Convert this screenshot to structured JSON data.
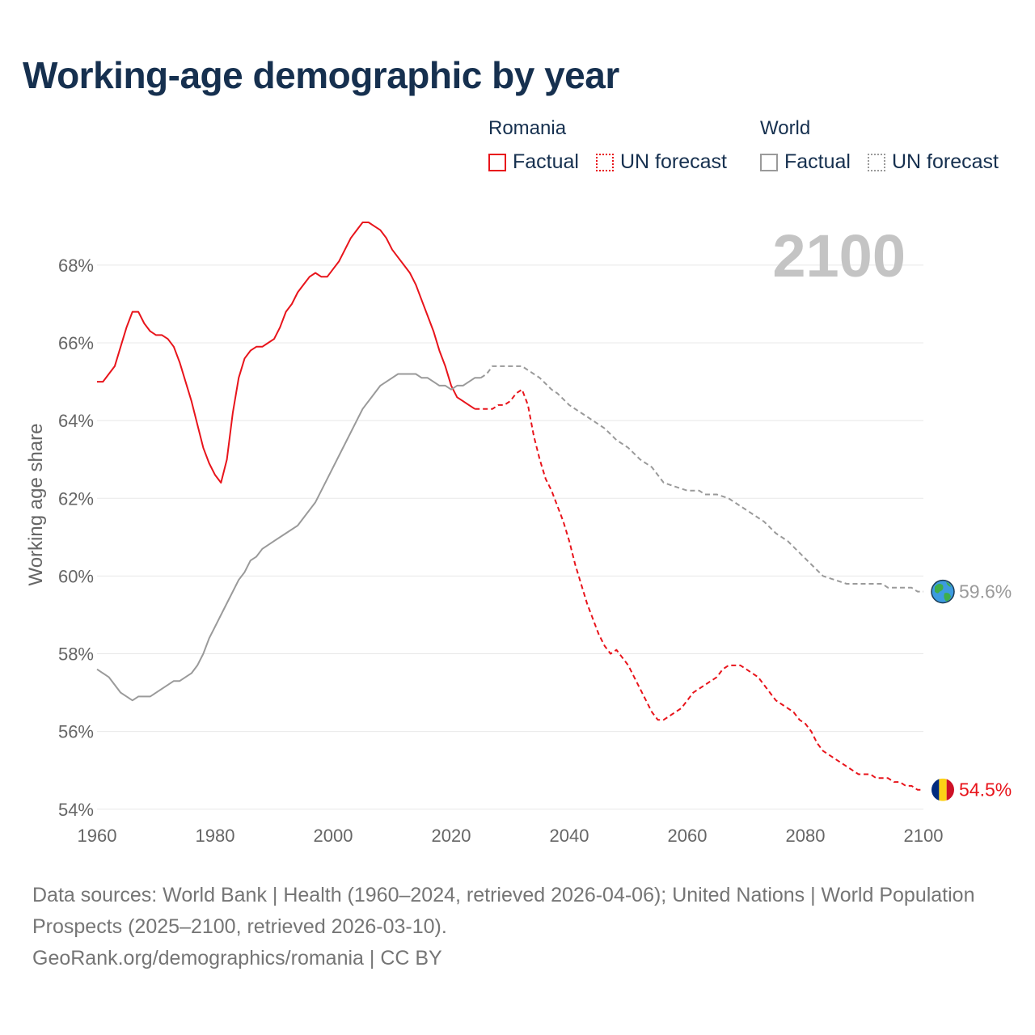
{
  "title": "Working-age demographic by year",
  "legend": {
    "romania_title": "Romania",
    "world_title": "World",
    "romania_factual": "Factual",
    "romania_forecast": "UN forecast",
    "world_factual": "Factual",
    "world_forecast": "UN forecast"
  },
  "colors": {
    "romania": "#e8141b",
    "world": "#9a9a9a",
    "title": "#16304f"
  },
  "chart_data": {
    "type": "line",
    "title": "Working-age demographic by year",
    "xlabel": "",
    "ylabel": "Working age share",
    "xlim": [
      1960,
      2100
    ],
    "ylim": [
      53.6,
      69.6
    ],
    "x_ticks": [
      1960,
      1980,
      2000,
      2020,
      2040,
      2060,
      2080,
      2100
    ],
    "y_ticks": [
      54,
      56,
      58,
      60,
      62,
      64,
      66,
      68
    ],
    "y_tick_suffix": "%",
    "year_label": "2100",
    "series": [
      {
        "name": "Romania",
        "segment": "Factual",
        "style": "solid",
        "color": "#e8141b",
        "points": [
          [
            1960,
            65.0
          ],
          [
            1961,
            65.0
          ],
          [
            1963,
            65.4
          ],
          [
            1964,
            65.9
          ],
          [
            1965,
            66.4
          ],
          [
            1966,
            66.8
          ],
          [
            1967,
            66.8
          ],
          [
            1968,
            66.5
          ],
          [
            1969,
            66.3
          ],
          [
            1970,
            66.2
          ],
          [
            1971,
            66.2
          ],
          [
            1972,
            66.1
          ],
          [
            1973,
            65.9
          ],
          [
            1974,
            65.5
          ],
          [
            1975,
            65.0
          ],
          [
            1976,
            64.5
          ],
          [
            1977,
            63.9
          ],
          [
            1978,
            63.3
          ],
          [
            1979,
            62.9
          ],
          [
            1980,
            62.6
          ],
          [
            1981,
            62.4
          ],
          [
            1982,
            63.0
          ],
          [
            1983,
            64.2
          ],
          [
            1984,
            65.1
          ],
          [
            1985,
            65.6
          ],
          [
            1986,
            65.8
          ],
          [
            1987,
            65.9
          ],
          [
            1988,
            65.9
          ],
          [
            1989,
            66.0
          ],
          [
            1990,
            66.1
          ],
          [
            1991,
            66.4
          ],
          [
            1992,
            66.8
          ],
          [
            1993,
            67.0
          ],
          [
            1994,
            67.3
          ],
          [
            1995,
            67.5
          ],
          [
            1996,
            67.7
          ],
          [
            1997,
            67.8
          ],
          [
            1998,
            67.7
          ],
          [
            1999,
            67.7
          ],
          [
            2000,
            67.9
          ],
          [
            2001,
            68.1
          ],
          [
            2002,
            68.4
          ],
          [
            2003,
            68.7
          ],
          [
            2004,
            68.9
          ],
          [
            2005,
            69.1
          ],
          [
            2006,
            69.1
          ],
          [
            2007,
            69.0
          ],
          [
            2008,
            68.9
          ],
          [
            2009,
            68.7
          ],
          [
            2010,
            68.4
          ],
          [
            2011,
            68.2
          ],
          [
            2012,
            68.0
          ],
          [
            2013,
            67.8
          ],
          [
            2014,
            67.5
          ],
          [
            2015,
            67.1
          ],
          [
            2016,
            66.7
          ],
          [
            2017,
            66.3
          ],
          [
            2018,
            65.8
          ],
          [
            2019,
            65.4
          ],
          [
            2020,
            64.9
          ],
          [
            2021,
            64.6
          ],
          [
            2022,
            64.5
          ],
          [
            2023,
            64.4
          ],
          [
            2024,
            64.3
          ]
        ]
      },
      {
        "name": "Romania",
        "segment": "UN forecast",
        "style": "dashed",
        "color": "#e8141b",
        "points": [
          [
            2024,
            64.3
          ],
          [
            2025,
            64.3
          ],
          [
            2026,
            64.3
          ],
          [
            2027,
            64.3
          ],
          [
            2028,
            64.4
          ],
          [
            2029,
            64.4
          ],
          [
            2030,
            64.5
          ],
          [
            2031,
            64.7
          ],
          [
            2032,
            64.8
          ],
          [
            2033,
            64.4
          ],
          [
            2034,
            63.6
          ],
          [
            2035,
            63.0
          ],
          [
            2036,
            62.5
          ],
          [
            2037,
            62.2
          ],
          [
            2038,
            61.8
          ],
          [
            2039,
            61.4
          ],
          [
            2040,
            60.9
          ],
          [
            2041,
            60.3
          ],
          [
            2042,
            59.8
          ],
          [
            2043,
            59.3
          ],
          [
            2044,
            58.9
          ],
          [
            2045,
            58.5
          ],
          [
            2046,
            58.2
          ],
          [
            2047,
            58.0
          ],
          [
            2048,
            58.1
          ],
          [
            2049,
            57.9
          ],
          [
            2050,
            57.7
          ],
          [
            2051,
            57.4
          ],
          [
            2052,
            57.1
          ],
          [
            2053,
            56.8
          ],
          [
            2054,
            56.5
          ],
          [
            2055,
            56.3
          ],
          [
            2056,
            56.3
          ],
          [
            2057,
            56.4
          ],
          [
            2058,
            56.5
          ],
          [
            2059,
            56.6
          ],
          [
            2060,
            56.8
          ],
          [
            2061,
            57.0
          ],
          [
            2062,
            57.1
          ],
          [
            2063,
            57.2
          ],
          [
            2064,
            57.3
          ],
          [
            2065,
            57.4
          ],
          [
            2066,
            57.6
          ],
          [
            2067,
            57.7
          ],
          [
            2068,
            57.7
          ],
          [
            2069,
            57.7
          ],
          [
            2070,
            57.6
          ],
          [
            2071,
            57.5
          ],
          [
            2072,
            57.4
          ],
          [
            2073,
            57.2
          ],
          [
            2074,
            57.0
          ],
          [
            2075,
            56.8
          ],
          [
            2076,
            56.7
          ],
          [
            2077,
            56.6
          ],
          [
            2078,
            56.5
          ],
          [
            2079,
            56.3
          ],
          [
            2080,
            56.2
          ],
          [
            2081,
            56.0
          ],
          [
            2082,
            55.7
          ],
          [
            2083,
            55.5
          ],
          [
            2084,
            55.4
          ],
          [
            2085,
            55.3
          ],
          [
            2086,
            55.2
          ],
          [
            2087,
            55.1
          ],
          [
            2088,
            55.0
          ],
          [
            2089,
            54.9
          ],
          [
            2090,
            54.9
          ],
          [
            2091,
            54.9
          ],
          [
            2092,
            54.8
          ],
          [
            2093,
            54.8
          ],
          [
            2094,
            54.8
          ],
          [
            2095,
            54.7
          ],
          [
            2096,
            54.7
          ],
          [
            2097,
            54.6
          ],
          [
            2098,
            54.6
          ],
          [
            2099,
            54.5
          ],
          [
            2100,
            54.5
          ]
        ]
      },
      {
        "name": "World",
        "segment": "Factual",
        "style": "solid",
        "color": "#9a9a9a",
        "points": [
          [
            1960,
            57.6
          ],
          [
            1962,
            57.4
          ],
          [
            1964,
            57.0
          ],
          [
            1966,
            56.8
          ],
          [
            1967,
            56.9
          ],
          [
            1969,
            56.9
          ],
          [
            1971,
            57.1
          ],
          [
            1973,
            57.3
          ],
          [
            1974,
            57.3
          ],
          [
            1976,
            57.5
          ],
          [
            1977,
            57.7
          ],
          [
            1978,
            58.0
          ],
          [
            1979,
            58.4
          ],
          [
            1980,
            58.7
          ],
          [
            1982,
            59.3
          ],
          [
            1984,
            59.9
          ],
          [
            1985,
            60.1
          ],
          [
            1986,
            60.4
          ],
          [
            1987,
            60.5
          ],
          [
            1988,
            60.7
          ],
          [
            1990,
            60.9
          ],
          [
            1992,
            61.1
          ],
          [
            1994,
            61.3
          ],
          [
            1996,
            61.7
          ],
          [
            1997,
            61.9
          ],
          [
            1998,
            62.2
          ],
          [
            2000,
            62.8
          ],
          [
            2002,
            63.4
          ],
          [
            2004,
            64.0
          ],
          [
            2005,
            64.3
          ],
          [
            2007,
            64.7
          ],
          [
            2008,
            64.9
          ],
          [
            2010,
            65.1
          ],
          [
            2011,
            65.2
          ],
          [
            2014,
            65.2
          ],
          [
            2015,
            65.1
          ],
          [
            2016,
            65.1
          ],
          [
            2017,
            65.0
          ],
          [
            2018,
            64.9
          ],
          [
            2019,
            64.9
          ],
          [
            2020,
            64.8
          ],
          [
            2021,
            64.9
          ],
          [
            2022,
            64.9
          ],
          [
            2024,
            65.1
          ],
          [
            2025,
            65.1
          ]
        ]
      },
      {
        "name": "World",
        "segment": "UN forecast",
        "style": "dashed",
        "color": "#9a9a9a",
        "points": [
          [
            2025,
            65.1
          ],
          [
            2026,
            65.2
          ],
          [
            2027,
            65.4
          ],
          [
            2032,
            65.4
          ],
          [
            2033,
            65.3
          ],
          [
            2035,
            65.1
          ],
          [
            2037,
            64.8
          ],
          [
            2038,
            64.7
          ],
          [
            2040,
            64.4
          ],
          [
            2042,
            64.2
          ],
          [
            2044,
            64.0
          ],
          [
            2046,
            63.8
          ],
          [
            2048,
            63.5
          ],
          [
            2050,
            63.3
          ],
          [
            2052,
            63.0
          ],
          [
            2054,
            62.8
          ],
          [
            2056,
            62.4
          ],
          [
            2058,
            62.3
          ],
          [
            2060,
            62.2
          ],
          [
            2062,
            62.2
          ],
          [
            2063,
            62.1
          ],
          [
            2065,
            62.1
          ],
          [
            2067,
            62.0
          ],
          [
            2069,
            61.8
          ],
          [
            2071,
            61.6
          ],
          [
            2073,
            61.4
          ],
          [
            2075,
            61.1
          ],
          [
            2077,
            60.9
          ],
          [
            2079,
            60.6
          ],
          [
            2081,
            60.3
          ],
          [
            2083,
            60.0
          ],
          [
            2085,
            59.9
          ],
          [
            2087,
            59.8
          ],
          [
            2093,
            59.8
          ],
          [
            2094,
            59.7
          ],
          [
            2098,
            59.7
          ],
          [
            2099,
            59.6
          ],
          [
            2100,
            59.6
          ]
        ]
      }
    ],
    "end_labels": [
      {
        "series": "World",
        "text": "59.6%",
        "value": 59.6,
        "icon": "globe-icon"
      },
      {
        "series": "Romania",
        "text": "54.5%",
        "value": 54.5,
        "icon": "romania-flag-icon"
      }
    ]
  },
  "footer": {
    "sources": "Data sources: World Bank | Health (1960–2024, retrieved 2026-04-06); United Nations | World Population Prospects (2025–2100, retrieved 2026-03-10).",
    "credit": "GeoRank.org/demographics/romania | CC BY"
  }
}
